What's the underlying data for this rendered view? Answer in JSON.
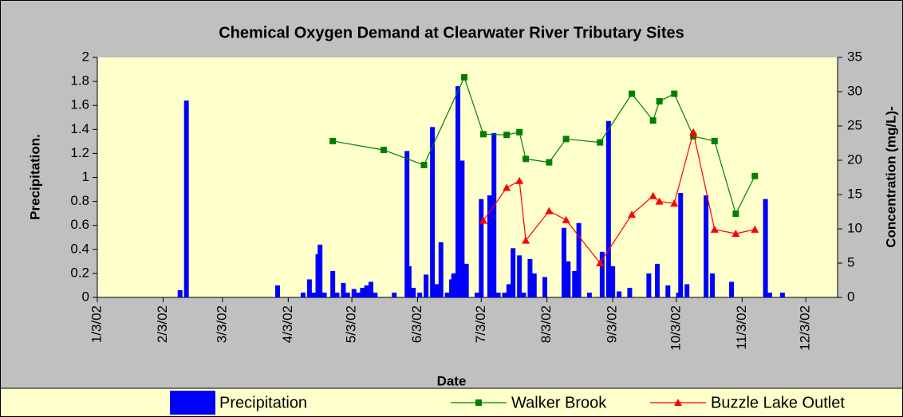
{
  "chart_data": {
    "type": "bar",
    "title": "Chemical Oxygen Demand at Clearwater River Tributary Sites",
    "x_label": "Date",
    "y_label": "Precipitation.",
    "y2_label": "Concentration (mg/L)-",
    "xlim": [
      "2002-01-03",
      "2002-12-18"
    ],
    "xticks": [
      {
        "value": "2002-01-03",
        "label": "1/3/02"
      },
      {
        "value": "2002-02-03",
        "label": "2/3/02"
      },
      {
        "value": "2002-03-03",
        "label": "3/3/02"
      },
      {
        "value": "2002-04-03",
        "label": "4/3/02"
      },
      {
        "value": "2002-05-03",
        "label": "5/3/02"
      },
      {
        "value": "2002-06-03",
        "label": "6/3/02"
      },
      {
        "value": "2002-07-03",
        "label": "7/3/02"
      },
      {
        "value": "2002-08-03",
        "label": "8/3/02"
      },
      {
        "value": "2002-09-03",
        "label": "9/3/02"
      },
      {
        "value": "2002-10-03",
        "label": "10/3/02"
      },
      {
        "value": "2002-11-03",
        "label": "11/3/02"
      },
      {
        "value": "2002-12-03",
        "label": "12/3/02"
      }
    ],
    "ylim": [
      0,
      2
    ],
    "yticks": [
      0,
      0.2,
      0.4,
      0.6,
      0.8,
      1,
      1.2,
      1.4,
      1.6,
      1.8,
      2
    ],
    "y2lim": [
      0,
      35
    ],
    "y2ticks": [
      0,
      5,
      10,
      15,
      20,
      25,
      30,
      35
    ],
    "legend": "bottom",
    "series": [
      {
        "name": "Precipitation",
        "type": "bar",
        "color": "#0000ff",
        "x": [
          "2002-02-11",
          "2002-02-14",
          "2002-03-29",
          "2002-04-10",
          "2002-04-13",
          "2002-04-15",
          "2002-04-17",
          "2002-04-18",
          "2002-04-20",
          "2002-04-24",
          "2002-04-26",
          "2002-04-29",
          "2002-05-01",
          "2002-05-04",
          "2002-05-06",
          "2002-05-08",
          "2002-05-10",
          "2002-05-12",
          "2002-05-14",
          "2002-05-23",
          "2002-05-29",
          "2002-05-30",
          "2002-06-01",
          "2002-06-04",
          "2002-06-07",
          "2002-06-10",
          "2002-06-11",
          "2002-06-12",
          "2002-06-14",
          "2002-06-17",
          "2002-06-19",
          "2002-06-20",
          "2002-06-22",
          "2002-06-24",
          "2002-06-26",
          "2002-07-01",
          "2002-07-03",
          "2002-07-07",
          "2002-07-09",
          "2002-07-11",
          "2002-07-14",
          "2002-07-16",
          "2002-07-18",
          "2002-07-21",
          "2002-07-23",
          "2002-07-26",
          "2002-07-28",
          "2002-08-02",
          "2002-08-11",
          "2002-08-13",
          "2002-08-16",
          "2002-08-18",
          "2002-08-23",
          "2002-08-29",
          "2002-09-01",
          "2002-09-03",
          "2002-09-06",
          "2002-09-11",
          "2002-09-20",
          "2002-09-24",
          "2002-09-29",
          "2002-10-04",
          "2002-10-05",
          "2002-10-08",
          "2002-10-17",
          "2002-10-20",
          "2002-10-29",
          "2002-11-14",
          "2002-11-16",
          "2002-11-22"
        ],
        "values": [
          0.06,
          1.64,
          0.1,
          0.04,
          0.15,
          0.04,
          0.36,
          0.44,
          0.04,
          0.22,
          0.04,
          0.12,
          0.04,
          0.07,
          0.04,
          0.08,
          0.1,
          0.13,
          0.04,
          0.04,
          1.22,
          0.26,
          0.08,
          0.04,
          0.19,
          1.42,
          0.08,
          0.11,
          0.46,
          0.04,
          0.15,
          0.2,
          1.76,
          1.14,
          0.28,
          0.04,
          0.82,
          0.85,
          1.37,
          0.04,
          0.04,
          0.11,
          0.41,
          0.35,
          0.04,
          0.32,
          0.2,
          0.17,
          0.58,
          0.3,
          0.22,
          0.62,
          0.04,
          0.38,
          1.47,
          0.26,
          0.05,
          0.08,
          0.2,
          0.28,
          0.1,
          0.04,
          0.87,
          0.11,
          0.85,
          0.2,
          0.13,
          0.82,
          0.04,
          0.04
        ]
      },
      {
        "name": "Walker Brook",
        "type": "line",
        "axis": "y2",
        "color": "#008000",
        "marker": "square",
        "x": [
          "2002-04-24",
          "2002-05-18",
          "2002-06-06",
          "2002-06-25",
          "2002-07-04",
          "2002-07-15",
          "2002-07-21",
          "2002-07-24",
          "2002-08-04",
          "2002-08-12",
          "2002-08-28",
          "2002-09-12",
          "2002-09-22",
          "2002-09-25",
          "2002-10-02",
          "2002-10-11",
          "2002-10-21",
          "2002-10-31",
          "2002-11-09"
        ],
        "values": [
          22.8,
          21.5,
          19.3,
          32.1,
          23.8,
          23.7,
          24.1,
          20.2,
          19.7,
          23.1,
          22.6,
          29.7,
          25.8,
          28.6,
          29.7,
          23.5,
          22.8,
          12.2,
          17.7
        ]
      },
      {
        "name": "Buzzle Lake Outlet",
        "type": "line",
        "axis": "y2",
        "color": "#ff0000",
        "marker": "triangle",
        "x": [
          "2002-07-04",
          "2002-07-15",
          "2002-07-21",
          "2002-07-24",
          "2002-08-04",
          "2002-08-12",
          "2002-08-28",
          "2002-09-12",
          "2002-09-22",
          "2002-09-25",
          "2002-10-02",
          "2002-10-11",
          "2002-10-21",
          "2002-10-31",
          "2002-11-09"
        ],
        "values": [
          11.2,
          16.0,
          17.0,
          8.3,
          12.6,
          11.3,
          5.0,
          12.1,
          14.8,
          14.0,
          13.7,
          24.1,
          9.9,
          9.3,
          9.9
        ]
      }
    ]
  }
}
